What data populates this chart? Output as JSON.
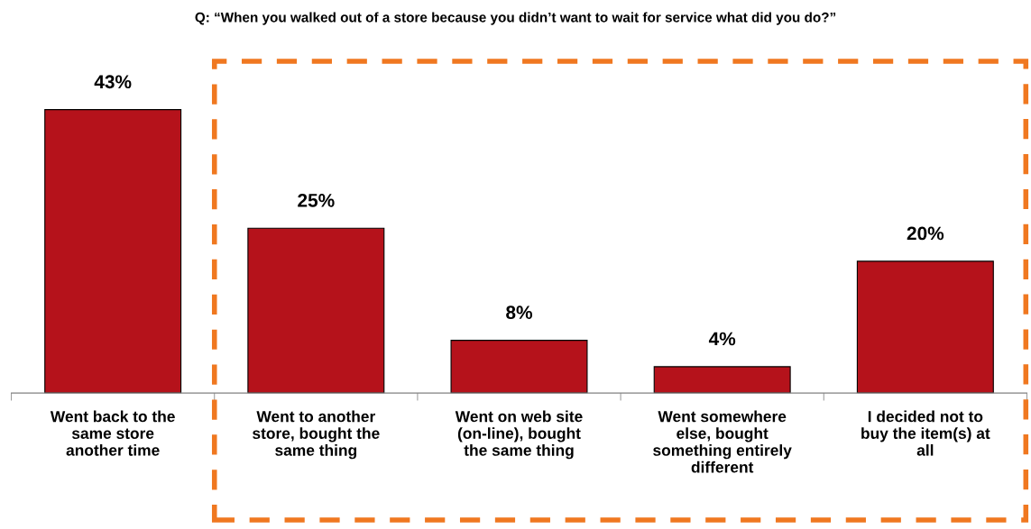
{
  "chart_data": {
    "type": "bar",
    "title": "Q: “When you walked out of a store because you didn’t want to wait for service what did you do?”",
    "categories": [
      "Went back to the\nsame store\nanother time",
      "Went to another\nstore, bought the\nsame thing",
      "Went on web site\n(on-line), bought\nthe same thing",
      "Went somewhere\nelse, bought\nsomething entirely\ndifferent",
      "I decided not to\nbuy the item(s) at\nall"
    ],
    "values": [
      43,
      25,
      8,
      4,
      20
    ],
    "value_labels": [
      "43%",
      "25%",
      "8%",
      "4%",
      "20%"
    ],
    "color": "#b5121b",
    "grid": false,
    "legend": false
  }
}
